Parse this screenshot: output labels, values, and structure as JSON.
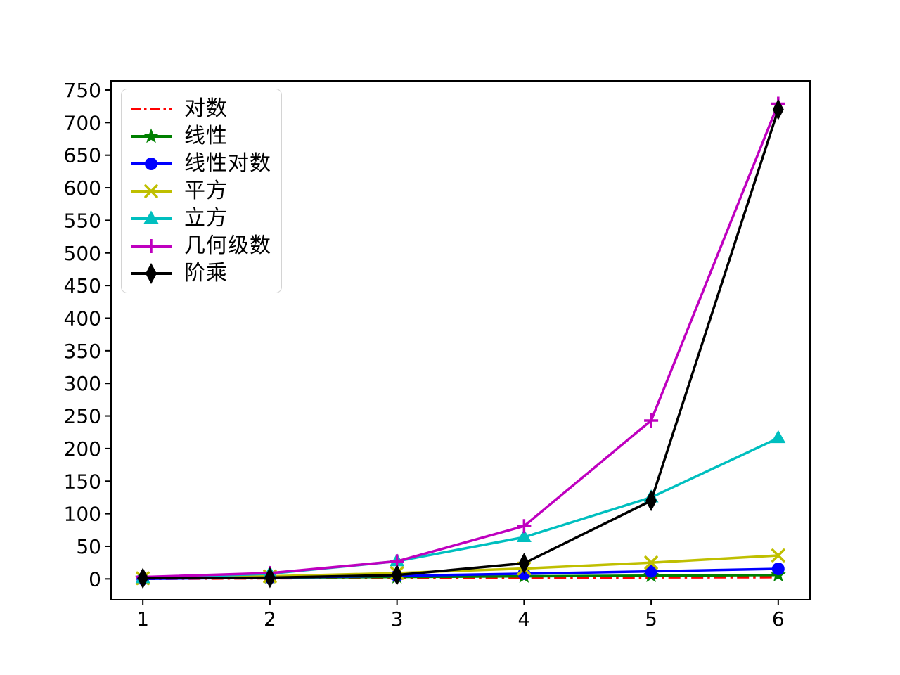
{
  "chart_data": {
    "type": "line",
    "title": "",
    "xlabel": "",
    "ylabel": "",
    "grid": false,
    "legend_position": "upper-left",
    "x": [
      1,
      2,
      3,
      4,
      5,
      6
    ],
    "xtick_labels": [
      "1",
      "2",
      "3",
      "4",
      "5",
      "6"
    ],
    "ytick_values": [
      0,
      50,
      100,
      150,
      200,
      250,
      300,
      350,
      400,
      450,
      500,
      550,
      600,
      650,
      700,
      750
    ],
    "xlim": [
      0.75,
      6.25
    ],
    "ylim": [
      -32,
      764
    ],
    "series": [
      {
        "name": "对数",
        "values": [
          0,
          1,
          1.58,
          2,
          2.32,
          2.58
        ],
        "color": "#ff0000",
        "linestyle": "dashdot",
        "marker": "none"
      },
      {
        "name": "线性",
        "values": [
          1,
          2,
          3,
          4,
          5,
          6
        ],
        "color": "#008000",
        "linestyle": "solid",
        "marker": "star"
      },
      {
        "name": "线性对数",
        "values": [
          0,
          2,
          4.75,
          8,
          11.6,
          15.5
        ],
        "color": "#0000ff",
        "linestyle": "solid",
        "marker": "circle"
      },
      {
        "name": "平方",
        "values": [
          1,
          4,
          9,
          16,
          25,
          36
        ],
        "color": "#bfbf00",
        "linestyle": "solid",
        "marker": "x"
      },
      {
        "name": "立方",
        "values": [
          1,
          8,
          27,
          64,
          125,
          216
        ],
        "color": "#00bfbf",
        "linestyle": "solid",
        "marker": "triangle-up"
      },
      {
        "name": "几何级数",
        "values": [
          3,
          9,
          27,
          81,
          243,
          729
        ],
        "color": "#bf00bf",
        "linestyle": "solid",
        "marker": "plus"
      },
      {
        "name": "阶乘",
        "values": [
          1,
          2,
          6,
          24,
          120,
          720
        ],
        "color": "#000000",
        "linestyle": "solid",
        "marker": "thin-diamond"
      }
    ]
  }
}
